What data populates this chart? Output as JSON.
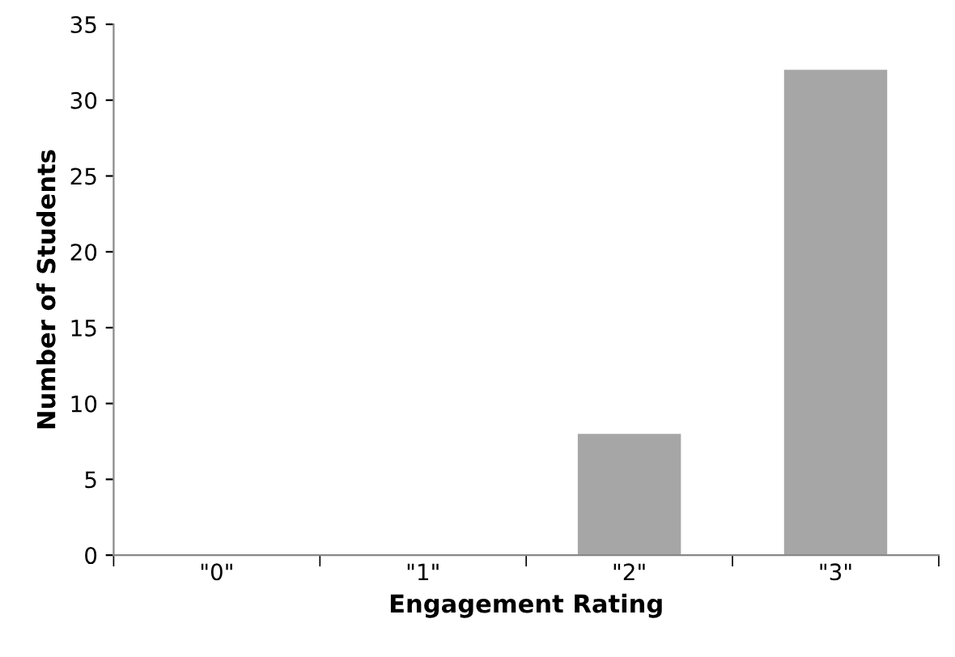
{
  "chart_data": {
    "type": "bar",
    "xlabel": "Engagement Rating",
    "ylabel": "Number of Students",
    "categories": [
      "\"0\"",
      "\"1\"",
      "\"2\"",
      "\"3\""
    ],
    "values": [
      0,
      0,
      8,
      32
    ],
    "color": "#a6a6a6",
    "ylim": [
      0,
      35
    ],
    "yticks": [
      0,
      5,
      10,
      15,
      20,
      25,
      30,
      35
    ],
    "grid": false,
    "legend": false
  }
}
